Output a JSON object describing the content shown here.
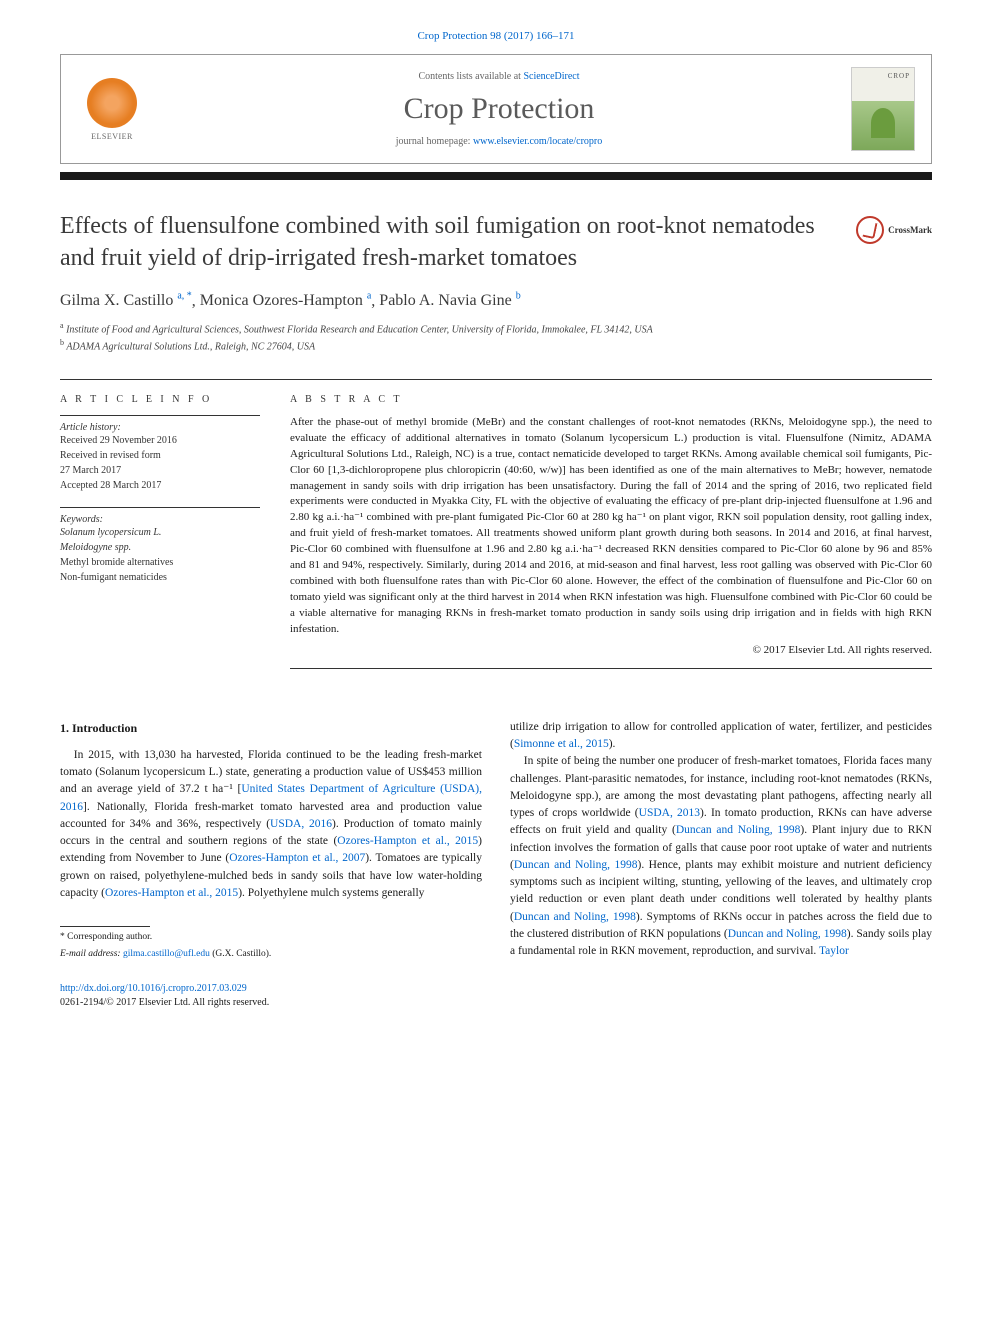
{
  "citation": "Crop Protection 98 (2017) 166–171",
  "header": {
    "contents_prefix": "Contents lists available at ",
    "contents_link": "ScienceDirect",
    "journal_name": "Crop Protection",
    "homepage_prefix": "journal homepage: ",
    "homepage_url": "www.elsevier.com/locate/cropro",
    "publisher_name": "ELSEVIER"
  },
  "crossmark_label": "CrossMark",
  "title": "Effects of fluensulfone combined with soil fumigation on root-knot nematodes and fruit yield of drip-irrigated fresh-market tomatoes",
  "authors_html": "Gilma X. Castillo",
  "authors": [
    {
      "name": "Gilma X. Castillo",
      "marks": "a, *"
    },
    {
      "name": "Monica Ozores-Hampton",
      "marks": "a"
    },
    {
      "name": "Pablo A. Navia Gine",
      "marks": "b"
    }
  ],
  "affiliations": [
    {
      "mark": "a",
      "text": "Institute of Food and Agricultural Sciences, Southwest Florida Research and Education Center, University of Florida, Immokalee, FL 34142, USA"
    },
    {
      "mark": "b",
      "text": "ADAMA Agricultural Solutions Ltd., Raleigh, NC 27604, USA"
    }
  ],
  "article_info": {
    "heading": "A R T I C L E  I N F O",
    "history_label": "Article history:",
    "history": [
      "Received 29 November 2016",
      "Received in revised form",
      "27 March 2017",
      "Accepted 28 March 2017"
    ],
    "keywords_label": "Keywords:",
    "keywords": [
      "Solanum lycopersicum L.",
      "Meloidogyne spp.",
      "Methyl bromide alternatives",
      "Non-fumigant nematicides"
    ]
  },
  "abstract": {
    "heading": "A B S T R A C T",
    "text": "After the phase-out of methyl bromide (MeBr) and the constant challenges of root-knot nematodes (RKNs, Meloidogyne spp.), the need to evaluate the efficacy of additional alternatives in tomato (Solanum lycopersicum L.) production is vital. Fluensulfone (Nimitz, ADAMA Agricultural Solutions Ltd., Raleigh, NC) is a true, contact nematicide developed to target RKNs. Among available chemical soil fumigants, Pic-Clor 60 [1,3-dichloropropene plus chloropicrin (40:60, w/w)] has been identified as one of the main alternatives to MeBr; however, nematode management in sandy soils with drip irrigation has been unsatisfactory. During the fall of 2014 and the spring of 2016, two replicated field experiments were conducted in Myakka City, FL with the objective of evaluating the efficacy of pre-plant drip-injected fluensulfone at 1.96 and 2.80 kg a.i.·ha⁻¹ combined with pre-plant fumigated Pic-Clor 60 at 280 kg ha⁻¹ on plant vigor, RKN soil population density, root galling index, and fruit yield of fresh-market tomatoes. All treatments showed uniform plant growth during both seasons. In 2014 and 2016, at final harvest, Pic-Clor 60 combined with fluensulfone at 1.96 and 2.80 kg a.i.·ha⁻¹ decreased RKN densities compared to Pic-Clor 60 alone by 96 and 85% and 81 and 94%, respectively. Similarly, during 2014 and 2016, at mid-season and final harvest, less root galling was observed with Pic-Clor 60 combined with both fluensulfone rates than with Pic-Clor 60 alone. However, the effect of the combination of fluensulfone and Pic-Clor 60 on tomato yield was significant only at the third harvest in 2014 when RKN infestation was high. Fluensulfone combined with Pic-Clor 60 could be a viable alternative for managing RKNs in fresh-market tomato production in sandy soils using drip irrigation and in fields with high RKN infestation.",
    "copyright": "© 2017 Elsevier Ltd. All rights reserved."
  },
  "body": {
    "section_number": "1.",
    "section_title": "Introduction",
    "col1_p1_pre": "In 2015, with 13,030 ha harvested, Florida continued to be the leading fresh-market tomato (Solanum lycopersicum L.) state, generating a production value of US$453 million and an average yield of 37.2 t ha⁻¹ [",
    "col1_p1_link1": "United States Department of Agriculture (USDA), 2016",
    "col1_p1_mid1": "]. Nationally, Florida fresh-market tomato harvested area and production value accounted for 34% and 36%, respectively (",
    "col1_p1_link2": "USDA, 2016",
    "col1_p1_mid2": "). Production of tomato mainly occurs in the central and southern regions of the state (",
    "col1_p1_link3": "Ozores-Hampton et al., 2015",
    "col1_p1_mid3": ") extending from November to June (",
    "col1_p1_link4": "Ozores-Hampton et al., 2007",
    "col1_p1_mid4": "). Tomatoes are typically grown on raised, polyethylene-mulched beds in sandy soils that have low water-holding capacity (",
    "col1_p1_link5": "Ozores-Hampton et al., 2015",
    "col1_p1_post": "). Polyethylene mulch systems generally",
    "col2_p1_pre": "utilize drip irrigation to allow for controlled application of water, fertilizer, and pesticides (",
    "col2_p1_link1": "Simonne et al., 2015",
    "col2_p1_post": ").",
    "col2_p2_pre": "In spite of being the number one producer of fresh-market tomatoes, Florida faces many challenges. Plant-parasitic nematodes, for instance, including root-knot nematodes (RKNs, Meloidogyne spp.), are among the most devastating plant pathogens, affecting nearly all types of crops worldwide (",
    "col2_p2_link1": "USDA, 2013",
    "col2_p2_mid1": "). In tomato production, RKNs can have adverse effects on fruit yield and quality (",
    "col2_p2_link2": "Duncan and Noling, 1998",
    "col2_p2_mid2": "). Plant injury due to RKN infection involves the formation of galls that cause poor root uptake of water and nutrients (",
    "col2_p2_link3": "Duncan and Noling, 1998",
    "col2_p2_mid3": "). Hence, plants may exhibit moisture and nutrient deficiency symptoms such as incipient wilting, stunting, yellowing of the leaves, and ultimately crop yield reduction or even plant death under conditions well tolerated by healthy plants (",
    "col2_p2_link4": "Duncan and Noling, 1998",
    "col2_p2_mid4": "). Symptoms of RKNs occur in patches across the field due to the clustered distribution of RKN populations (",
    "col2_p2_link5": "Duncan and Noling, 1998",
    "col2_p2_mid5": "). Sandy soils play a fundamental role in RKN movement, reproduction, and survival. ",
    "col2_p2_link6": "Taylor"
  },
  "footnote": {
    "corresponding": "* Corresponding author.",
    "email_label": "E-mail address:",
    "email": "gilma.castillo@ufl.edu",
    "email_attrib": "(G.X. Castillo)."
  },
  "doi": {
    "url": "http://dx.doi.org/10.1016/j.cropro.2017.03.029",
    "issn_line": "0261-2194/© 2017 Elsevier Ltd. All rights reserved."
  },
  "colors": {
    "link": "#0066cc",
    "text": "#1a1a1a",
    "heading_gray": "#3a3a3a"
  }
}
